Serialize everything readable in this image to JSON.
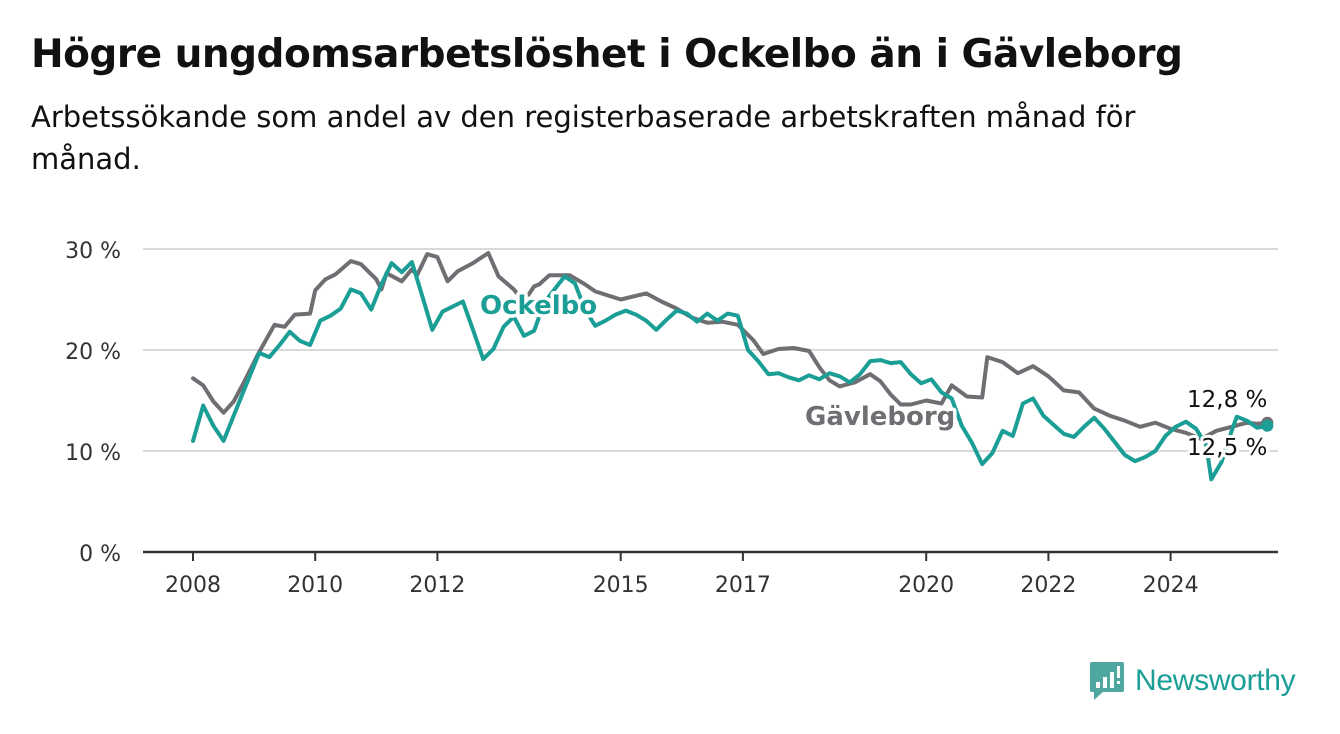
{
  "header": {
    "title": "Högre ungdomsarbetslöshet i Ockelbo än i Gävleborg",
    "subtitle": "Arbetssökande som andel av den registerbaserade arbetskraften månad för månad."
  },
  "brand": {
    "name": "Newsworthy",
    "icon": "newsworthy-logo-icon",
    "color": "#1a9e95"
  },
  "chart_data": {
    "type": "line",
    "title": "Högre ungdomsarbetslöshet i Ockelbo än i Gävleborg",
    "subtitle": "Arbetssökande som andel av den registerbaserade arbetskraften månad för månad.",
    "xlabel": "",
    "ylabel": "",
    "x_ticks": [
      "2008",
      "2010",
      "2012",
      "2015",
      "2017",
      "2020",
      "2022",
      "2024"
    ],
    "y_ticks": [
      "0 %",
      "10 %",
      "20 %",
      "30 %"
    ],
    "xlim": [
      "2008-01",
      "2025-08"
    ],
    "ylim": [
      0,
      30
    ],
    "grid": "horizontal",
    "legend": "inline labels",
    "series": [
      {
        "name": "Gävleborg",
        "color": "#6e6e73",
        "label_value": "12,8 %",
        "points": [
          [
            "2008-01",
            17.2
          ],
          [
            "2008-03",
            16.5
          ],
          [
            "2008-05",
            14.9
          ],
          [
            "2008-07",
            13.8
          ],
          [
            "2008-09",
            14.9
          ],
          [
            "2008-11",
            16.8
          ],
          [
            "2009-02",
            19.8
          ],
          [
            "2009-05",
            22.5
          ],
          [
            "2009-07",
            22.3
          ],
          [
            "2009-09",
            23.5
          ],
          [
            "2009-12",
            23.6
          ],
          [
            "2010-01",
            25.9
          ],
          [
            "2010-03",
            27.0
          ],
          [
            "2010-05",
            27.5
          ],
          [
            "2010-08",
            28.8
          ],
          [
            "2010-10",
            28.5
          ],
          [
            "2011-01",
            27.0
          ],
          [
            "2011-02",
            26.0
          ],
          [
            "2011-03",
            27.6
          ],
          [
            "2011-06",
            26.8
          ],
          [
            "2011-08",
            28.0
          ],
          [
            "2011-09",
            27.4
          ],
          [
            "2011-11",
            29.5
          ],
          [
            "2012-01",
            29.2
          ],
          [
            "2012-03",
            26.8
          ],
          [
            "2012-05",
            27.8
          ],
          [
            "2012-08",
            28.6
          ],
          [
            "2012-11",
            29.6
          ],
          [
            "2013-01",
            27.3
          ],
          [
            "2013-04",
            26.0
          ],
          [
            "2013-06",
            24.8
          ],
          [
            "2013-08",
            26.3
          ],
          [
            "2013-09",
            26.5
          ],
          [
            "2013-11",
            27.4
          ],
          [
            "2014-03",
            27.4
          ],
          [
            "2014-06",
            26.5
          ],
          [
            "2014-08",
            25.8
          ],
          [
            "2015-01",
            25.0
          ],
          [
            "2015-06",
            25.6
          ],
          [
            "2015-09",
            24.8
          ],
          [
            "2015-12",
            24.1
          ],
          [
            "2016-03",
            23.2
          ],
          [
            "2016-06",
            22.7
          ],
          [
            "2016-09",
            22.8
          ],
          [
            "2016-12",
            22.5
          ],
          [
            "2017-03",
            21.0
          ],
          [
            "2017-05",
            19.6
          ],
          [
            "2017-08",
            20.1
          ],
          [
            "2017-11",
            20.2
          ],
          [
            "2018-02",
            19.9
          ],
          [
            "2018-04",
            18.3
          ],
          [
            "2018-06",
            17.0
          ],
          [
            "2018-08",
            16.4
          ],
          [
            "2018-11",
            16.8
          ],
          [
            "2019-02",
            17.6
          ],
          [
            "2019-04",
            16.9
          ],
          [
            "2019-06",
            15.6
          ],
          [
            "2019-08",
            14.6
          ],
          [
            "2019-10",
            14.6
          ],
          [
            "2020-01",
            15.0
          ],
          [
            "2020-04",
            14.7
          ],
          [
            "2020-06",
            16.5
          ],
          [
            "2020-09",
            15.4
          ],
          [
            "2020-12",
            15.3
          ],
          [
            "2021-01",
            19.3
          ],
          [
            "2021-04",
            18.8
          ],
          [
            "2021-07",
            17.7
          ],
          [
            "2021-10",
            18.4
          ],
          [
            "2022-01",
            17.4
          ],
          [
            "2022-04",
            16.0
          ],
          [
            "2022-07",
            15.8
          ],
          [
            "2022-10",
            14.2
          ],
          [
            "2023-01",
            13.5
          ],
          [
            "2023-04",
            13.0
          ],
          [
            "2023-07",
            12.4
          ],
          [
            "2023-10",
            12.8
          ],
          [
            "2024-01",
            12.2
          ],
          [
            "2024-04",
            11.8
          ],
          [
            "2024-07",
            11.2
          ],
          [
            "2024-10",
            12.0
          ],
          [
            "2025-01",
            12.4
          ],
          [
            "2025-04",
            12.8
          ],
          [
            "2025-06",
            12.7
          ],
          [
            "2025-08",
            12.8
          ]
        ]
      },
      {
        "name": "Ockelbo",
        "color": "#1a9e95",
        "label_value": "12,5 %",
        "points": [
          [
            "2008-01",
            11.0
          ],
          [
            "2008-03",
            14.5
          ],
          [
            "2008-05",
            12.5
          ],
          [
            "2008-07",
            11.0
          ],
          [
            "2008-09",
            13.5
          ],
          [
            "2008-11",
            16.0
          ],
          [
            "2009-02",
            19.7
          ],
          [
            "2009-04",
            19.3
          ],
          [
            "2009-06",
            20.5
          ],
          [
            "2009-08",
            21.8
          ],
          [
            "2009-10",
            20.9
          ],
          [
            "2009-12",
            20.5
          ],
          [
            "2010-02",
            22.9
          ],
          [
            "2010-04",
            23.4
          ],
          [
            "2010-06",
            24.1
          ],
          [
            "2010-08",
            26.0
          ],
          [
            "2010-10",
            25.6
          ],
          [
            "2010-12",
            24.0
          ],
          [
            "2011-02",
            26.5
          ],
          [
            "2011-04",
            28.6
          ],
          [
            "2011-06",
            27.7
          ],
          [
            "2011-08",
            28.7
          ],
          [
            "2011-10",
            25.4
          ],
          [
            "2011-12",
            22.0
          ],
          [
            "2012-02",
            23.8
          ],
          [
            "2012-04",
            24.3
          ],
          [
            "2012-06",
            24.8
          ],
          [
            "2012-08",
            22.0
          ],
          [
            "2012-10",
            19.1
          ],
          [
            "2012-12",
            20.1
          ],
          [
            "2013-02",
            22.3
          ],
          [
            "2013-04",
            23.3
          ],
          [
            "2013-06",
            21.4
          ],
          [
            "2013-08",
            21.9
          ],
          [
            "2013-10",
            24.7
          ],
          [
            "2013-12",
            26.0
          ],
          [
            "2014-02",
            27.3
          ],
          [
            "2014-04",
            26.6
          ],
          [
            "2014-06",
            24.0
          ],
          [
            "2014-08",
            22.4
          ],
          [
            "2014-10",
            22.9
          ],
          [
            "2014-12",
            23.5
          ],
          [
            "2015-02",
            23.9
          ],
          [
            "2015-04",
            23.5
          ],
          [
            "2015-06",
            22.9
          ],
          [
            "2015-08",
            22.0
          ],
          [
            "2015-10",
            23.0
          ],
          [
            "2015-12",
            23.9
          ],
          [
            "2016-02",
            23.6
          ],
          [
            "2016-04",
            22.8
          ],
          [
            "2016-06",
            23.6
          ],
          [
            "2016-08",
            22.9
          ],
          [
            "2016-10",
            23.6
          ],
          [
            "2016-12",
            23.4
          ],
          [
            "2017-02",
            20.0
          ],
          [
            "2017-04",
            18.9
          ],
          [
            "2017-06",
            17.6
          ],
          [
            "2017-08",
            17.7
          ],
          [
            "2017-10",
            17.3
          ],
          [
            "2017-12",
            17.0
          ],
          [
            "2018-02",
            17.5
          ],
          [
            "2018-04",
            17.1
          ],
          [
            "2018-06",
            17.7
          ],
          [
            "2018-08",
            17.4
          ],
          [
            "2018-10",
            16.8
          ],
          [
            "2018-12",
            17.6
          ],
          [
            "2019-02",
            18.9
          ],
          [
            "2019-04",
            19.0
          ],
          [
            "2019-06",
            18.7
          ],
          [
            "2019-08",
            18.8
          ],
          [
            "2019-10",
            17.6
          ],
          [
            "2019-12",
            16.7
          ],
          [
            "2020-02",
            17.1
          ],
          [
            "2020-04",
            15.8
          ],
          [
            "2020-06",
            15.2
          ],
          [
            "2020-08",
            12.5
          ],
          [
            "2020-10",
            10.8
          ],
          [
            "2020-12",
            8.7
          ],
          [
            "2021-02",
            9.8
          ],
          [
            "2021-04",
            12.0
          ],
          [
            "2021-06",
            11.5
          ],
          [
            "2021-08",
            14.7
          ],
          [
            "2021-10",
            15.2
          ],
          [
            "2021-12",
            13.5
          ],
          [
            "2022-02",
            12.6
          ],
          [
            "2022-04",
            11.7
          ],
          [
            "2022-06",
            11.4
          ],
          [
            "2022-08",
            12.4
          ],
          [
            "2022-10",
            13.3
          ],
          [
            "2022-12",
            12.2
          ],
          [
            "2023-02",
            10.9
          ],
          [
            "2023-04",
            9.6
          ],
          [
            "2023-06",
            9.0
          ],
          [
            "2023-08",
            9.4
          ],
          [
            "2023-10",
            10.0
          ],
          [
            "2023-12",
            11.5
          ],
          [
            "2024-02",
            12.4
          ],
          [
            "2024-04",
            12.9
          ],
          [
            "2024-06",
            12.2
          ],
          [
            "2024-08",
            10.6
          ],
          [
            "2024-09",
            7.2
          ],
          [
            "2024-11",
            8.9
          ],
          [
            "2025-01",
            12.0
          ],
          [
            "2025-02",
            13.4
          ],
          [
            "2025-04",
            13.0
          ],
          [
            "2025-06",
            12.3
          ],
          [
            "2025-08",
            12.5
          ]
        ]
      }
    ]
  }
}
